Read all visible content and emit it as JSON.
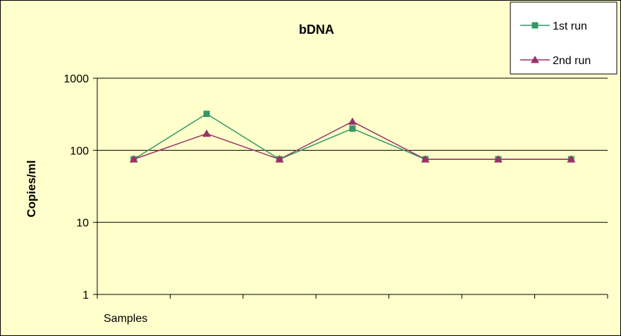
{
  "chart_data": {
    "type": "line",
    "title": "bDNA",
    "xlabel": "Samples",
    "ylabel": "Copies/ml",
    "y_scale": "log",
    "ylim": [
      1,
      1000
    ],
    "y_ticks": [
      "1",
      "10",
      "100",
      "1000"
    ],
    "x": [
      1,
      2,
      3,
      4,
      5,
      6,
      7
    ],
    "grid": "horizontal major gridlines",
    "legend_position": "top-right",
    "series": [
      {
        "name": "1st run",
        "marker": "square",
        "color": "#339966",
        "values": [
          75,
          320,
          75,
          200,
          75,
          75,
          75
        ]
      },
      {
        "name": "2nd run",
        "marker": "triangle",
        "color": "#993366",
        "values": [
          75,
          170,
          75,
          250,
          75,
          75,
          75
        ]
      }
    ]
  }
}
